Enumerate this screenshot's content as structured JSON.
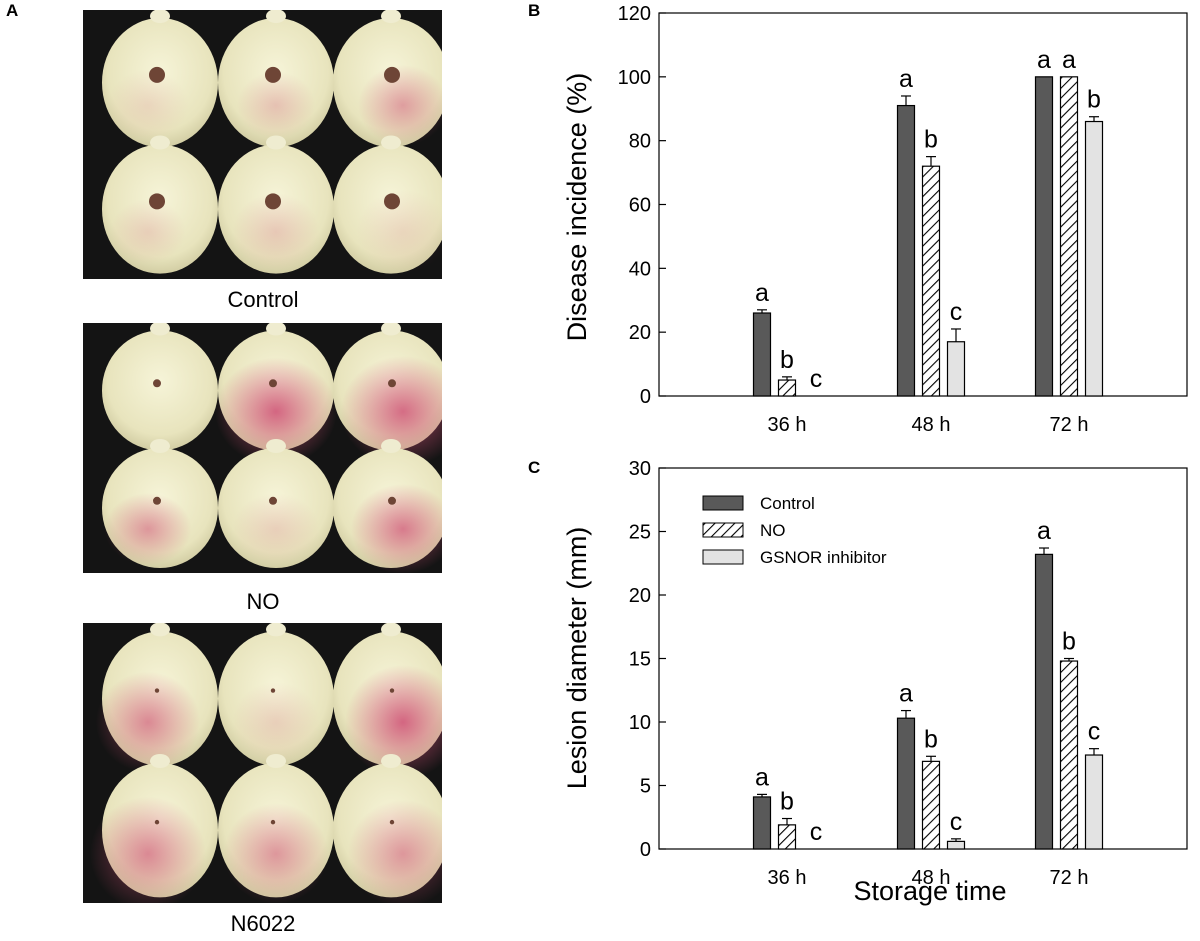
{
  "panel_a": {
    "label": "A",
    "photos": [
      {
        "caption": "Control"
      },
      {
        "caption": "NO"
      },
      {
        "caption": "N6022"
      }
    ]
  },
  "colors": {
    "control": "#595959",
    "no_fill": "#ffffff",
    "gsnor": "#e3e3e3",
    "photo_bg": "#141414",
    "fruit": "#ece9c6",
    "blush": "#cf5a7d",
    "lesion": "#6e4536"
  },
  "chart_data": [
    {
      "panel": "B",
      "type": "bar",
      "categories": [
        "36 h",
        "48 h",
        "72 h"
      ],
      "series": [
        {
          "name": "Control",
          "values": [
            26,
            91,
            100
          ],
          "errors": [
            1,
            3,
            0
          ],
          "letters": [
            "a",
            "a",
            "a"
          ]
        },
        {
          "name": "NO",
          "values": [
            5,
            72,
            100
          ],
          "errors": [
            1,
            3,
            0
          ],
          "letters": [
            "b",
            "b",
            "a"
          ]
        },
        {
          "name": "GSNOR inhibitor",
          "values": [
            0,
            17,
            86
          ],
          "errors": [
            0,
            4,
            1.5
          ],
          "letters": [
            "c",
            "c",
            "b"
          ]
        }
      ],
      "title": "",
      "xlabel": "",
      "ylabel": "Disease incidence (%)",
      "ylim": [
        0,
        120
      ],
      "yticks": [
        "0",
        "20",
        "40",
        "60",
        "80",
        "100",
        "120"
      ],
      "grid": false
    },
    {
      "panel": "C",
      "type": "bar",
      "categories": [
        "36 h",
        "48 h",
        "72 h"
      ],
      "series": [
        {
          "name": "Control",
          "values": [
            4.1,
            10.3,
            23.2
          ],
          "errors": [
            0.2,
            0.6,
            0.5
          ],
          "letters": [
            "a",
            "a",
            "a"
          ]
        },
        {
          "name": "NO",
          "values": [
            1.9,
            6.9,
            14.8
          ],
          "errors": [
            0.5,
            0.4,
            0.2
          ],
          "letters": [
            "b",
            "b",
            "b"
          ]
        },
        {
          "name": "GSNOR inhibitor",
          "values": [
            0,
            0.6,
            7.4
          ],
          "errors": [
            0,
            0.2,
            0.5
          ],
          "letters": [
            "c",
            "c",
            "c"
          ]
        }
      ],
      "title": "",
      "xlabel": "Storage time",
      "ylabel": "Lesion diameter (mm)",
      "ylim": [
        0,
        30
      ],
      "yticks": [
        "0",
        "5",
        "10",
        "15",
        "20",
        "25",
        "30"
      ],
      "grid": false,
      "legend": {
        "position": "top-left",
        "entries": [
          "Control",
          "NO",
          "GSNOR inhibitor"
        ]
      }
    }
  ]
}
